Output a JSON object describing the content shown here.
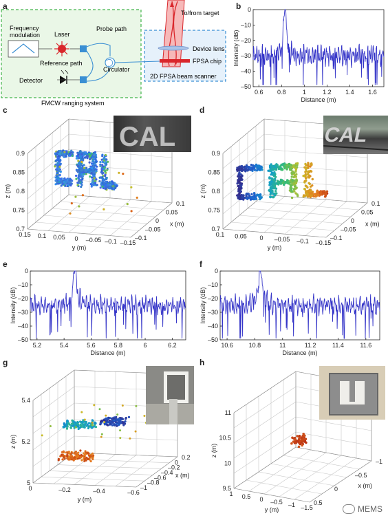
{
  "panel_letters": [
    "a",
    "b",
    "c",
    "d",
    "e",
    "f",
    "g",
    "h"
  ],
  "schematic": {
    "labels": {
      "freq": "Frequency\nmodulation",
      "laser": "Laser",
      "probe": "Probe path",
      "reference": "Reference path",
      "circulator": "Circulator",
      "detector": "Detector",
      "system": "FMCW ranging system",
      "target": "To/from target",
      "lens": "Device lens",
      "chip": "FPSA chip",
      "scanner": "2D FPSA beam scanner"
    },
    "colors": {
      "green": "#41b34a",
      "blue": "#3a8fd3",
      "red": "#d9262b"
    }
  },
  "chart_data": [
    {
      "id": "b",
      "type": "line",
      "xlabel": "Distance (m)",
      "ylabel": "Intensity (dB)",
      "xlim": [
        0.55,
        1.7
      ],
      "ylim": [
        -50,
        0
      ],
      "xticks": [
        0.6,
        0.8,
        1,
        1.2,
        1.4,
        1.6
      ],
      "yticks": [
        0,
        -10,
        -20,
        -30,
        -40,
        -50
      ],
      "xtick_labels": [
        "0.6",
        "0.8",
        "1",
        "1.2",
        "1.4",
        "1.6"
      ],
      "ytick_labels": [
        "0",
        "–10",
        "–20",
        "–30",
        "–40",
        "–50"
      ],
      "peak_x": 0.83,
      "peak_y": -2,
      "noise_floor": -30,
      "color": "#3535c8"
    },
    {
      "id": "e",
      "type": "line",
      "xlabel": "Distance (m)",
      "ylabel": "Intensity (dB)",
      "xlim": [
        5.15,
        6.3
      ],
      "ylim": [
        -50,
        0
      ],
      "xticks": [
        5.2,
        5.4,
        5.6,
        5.8,
        6,
        6.2
      ],
      "yticks": [
        0,
        -10,
        -20,
        -30,
        -40,
        -50
      ],
      "xtick_labels": [
        "5.2",
        "5.4",
        "5.6",
        "5.8",
        "6",
        "6.2"
      ],
      "ytick_labels": [
        "0",
        "–10",
        "–20",
        "–30",
        "–40",
        "–50"
      ],
      "peak_x": 5.48,
      "peak_y": -2,
      "noise_floor": -25,
      "color": "#3535c8"
    },
    {
      "id": "f",
      "type": "line",
      "xlabel": "Distance (m)",
      "ylabel": "Intensity (dB)",
      "xlim": [
        10.55,
        11.7
      ],
      "ylim": [
        -50,
        0
      ],
      "xticks": [
        10.6,
        10.8,
        11,
        11.2,
        11.4,
        11.6
      ],
      "yticks": [
        0,
        -10,
        -20,
        -30,
        -40,
        -50
      ],
      "xtick_labels": [
        "10.6",
        "10.8",
        "11",
        "11.2",
        "11.4",
        "11.6"
      ],
      "ytick_labels": [
        "0",
        "–10",
        "–20",
        "–30",
        "–40",
        "–50"
      ],
      "peak_x": 10.84,
      "peak_y": -2,
      "noise_floor": -25,
      "color": "#3535c8"
    },
    {
      "id": "c",
      "type": "scatter",
      "zlabel": "z (m)",
      "ylabel": "y (m)",
      "xlabel": "x (m)",
      "zticks": [
        "0.9",
        "0.85",
        "0.8",
        "0.75",
        "0.7"
      ],
      "yticks": [
        "0.15",
        "0.1",
        "0.05",
        "0",
        "–0.05",
        "–0.1",
        "–0.15"
      ],
      "xticks": [
        "0.1",
        "0.05",
        "0",
        "–0.05",
        "–0.1"
      ]
    },
    {
      "id": "d",
      "type": "scatter",
      "zlabel": "z (m)",
      "ylabel": "y (m)",
      "xlabel": "x (m)",
      "zticks": [
        "0.9",
        "0.85",
        "0.8",
        "0.75",
        "0.7"
      ],
      "yticks": [
        "0.1",
        "0.05",
        "0",
        "–0.05",
        "–0.1",
        "–0.15"
      ],
      "xticks": [
        "0.1",
        "0.05",
        "0",
        "–0.05",
        "–0.1"
      ]
    },
    {
      "id": "g",
      "type": "scatter",
      "zlabel": "z (m)",
      "ylabel": "y (m)",
      "xlabel": "x (m)",
      "zticks": [
        "5.4",
        "5.2",
        "5"
      ],
      "yticks": [
        "0",
        "–0.2",
        "–0.4",
        "–0.6"
      ],
      "xticks": [
        "0.2",
        "0",
        "–0.2",
        "–0.4",
        "–0.6",
        "–0.8",
        "–1"
      ]
    },
    {
      "id": "h",
      "type": "scatter",
      "zlabel": "z (m)",
      "ylabel": "y (m)",
      "xlabel": "x (m)",
      "zticks": [
        "11",
        "10.5",
        "10",
        "9.5"
      ],
      "yticks": [
        "1",
        "0.5",
        "0",
        "–0.5",
        "–1",
        "–1.5"
      ],
      "xticks": [
        "–1",
        "–0.5",
        "0",
        "0.5"
      ]
    }
  ],
  "watermark": "MEMS"
}
